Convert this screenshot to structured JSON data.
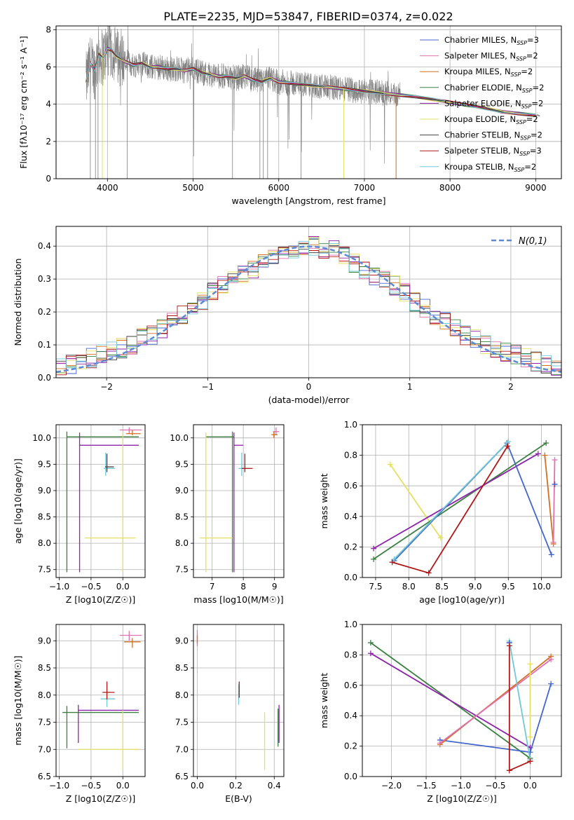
{
  "figure_title": "PLATE=2235, MJD=53847, FIBERID=0374, z=0.022",
  "colors": [
    "#4466cc",
    "#e070b0",
    "#d07020",
    "#3a8040",
    "#8e24aa",
    "#e6e060",
    "#404040",
    "#b01818",
    "#70c8d8"
  ],
  "chart_data": [
    {
      "id": "spectrum",
      "type": "line",
      "xlabel": "wavelength [Angstrom, rest frame]",
      "ylabel": "Flux [fλ10⁻¹⁷ erg cm⁻² s⁻¹ A⁻¹]",
      "xlim": [
        3400,
        9300
      ],
      "ylim": [
        0,
        8.2
      ],
      "xticks": [
        4000,
        5000,
        6000,
        7000,
        8000,
        9000
      ],
      "yticks": [
        0,
        2,
        4,
        6,
        8
      ],
      "data_color": "#808080",
      "continuum": {
        "x": [
          3750,
          3800,
          3850,
          3900,
          3950,
          4000,
          4050,
          4100,
          4200,
          4300,
          4400,
          4500,
          4600,
          4700,
          4800,
          4900,
          5000,
          5100,
          5200,
          5300,
          5400,
          5500,
          5600,
          5700,
          5800,
          5900,
          6000,
          6200,
          6400,
          6600,
          6800,
          7000,
          7200,
          7400,
          7600,
          7800,
          8000,
          8200,
          8400,
          8600,
          8800,
          9000
        ],
        "y": [
          5.2,
          6.2,
          5.8,
          6.7,
          6.5,
          7.0,
          6.9,
          6.6,
          6.3,
          6.1,
          6.2,
          6.0,
          6.0,
          5.9,
          5.9,
          5.8,
          5.9,
          5.7,
          5.6,
          5.5,
          5.5,
          5.4,
          5.5,
          5.3,
          5.2,
          5.4,
          5.2,
          5.1,
          5.0,
          4.9,
          4.8,
          4.7,
          4.6,
          4.5,
          4.4,
          4.25,
          4.1,
          3.95,
          3.8,
          3.6,
          3.5,
          3.4
        ]
      },
      "legend": [
        {
          "label": "Chabrier MILES, N_SSP=3",
          "color": "#4466cc"
        },
        {
          "label": "Salpeter MILES, N_SSP=2",
          "color": "#e070b0"
        },
        {
          "label": "Kroupa MILES, N_SSP=2",
          "color": "#d07020"
        },
        {
          "label": "Chabrier ELODIE, N_SSP=2",
          "color": "#3a8040"
        },
        {
          "label": "Salpeter ELODIE, N_SSP=2",
          "color": "#8e24aa"
        },
        {
          "label": "Kroupa ELODIE, N_SSP=2",
          "color": "#e6e060"
        },
        {
          "label": "Chabrier STELIB, N_SSP=2",
          "color": "#404040"
        },
        {
          "label": "Salpeter STELIB, N_SSP=3",
          "color": "#b01818"
        },
        {
          "label": "Kroupa STELIB, N_SSP=2",
          "color": "#70c8d8"
        }
      ]
    },
    {
      "id": "residuals",
      "type": "line",
      "xlabel": "(data-model)/error",
      "ylabel": "Normed distribution",
      "xlim": [
        -2.5,
        2.5
      ],
      "ylim": [
        0,
        0.46
      ],
      "xticks": [
        -2,
        -1,
        0,
        1,
        2
      ],
      "yticks": [
        0.0,
        0.1,
        0.2,
        0.3,
        0.4
      ],
      "gaussian_label": "N(0,1)",
      "gaussian_color": "#5b8ad6",
      "bin_edges": [
        -2.5,
        -2.4,
        -2.3,
        -2.2,
        -2.1,
        -2.0,
        -1.9,
        -1.8,
        -1.7,
        -1.6,
        -1.5,
        -1.4,
        -1.3,
        -1.2,
        -1.1,
        -1.0,
        -0.9,
        -0.8,
        -0.7,
        -0.6,
        -0.5,
        -0.4,
        -0.3,
        -0.2,
        -0.1,
        0.0,
        0.1,
        0.2,
        0.3,
        0.4,
        0.5,
        0.6,
        0.7,
        0.8,
        0.9,
        1.0,
        1.1,
        1.2,
        1.3,
        1.4,
        1.5,
        1.6,
        1.7,
        1.8,
        1.9,
        2.0,
        2.1,
        2.2,
        2.3,
        2.4,
        2.5
      ],
      "hist_base": [
        0.03,
        0.04,
        0.05,
        0.06,
        0.07,
        0.08,
        0.09,
        0.1,
        0.12,
        0.13,
        0.15,
        0.17,
        0.19,
        0.21,
        0.23,
        0.26,
        0.28,
        0.3,
        0.31,
        0.33,
        0.35,
        0.37,
        0.39,
        0.39,
        0.4,
        0.4,
        0.39,
        0.39,
        0.37,
        0.35,
        0.33,
        0.31,
        0.3,
        0.28,
        0.26,
        0.23,
        0.21,
        0.19,
        0.17,
        0.15,
        0.13,
        0.12,
        0.1,
        0.09,
        0.08,
        0.07,
        0.06,
        0.05,
        0.04,
        0.035
      ]
    },
    {
      "id": "age_vs_Z",
      "type": "scatter",
      "xlabel": "Z [log10(Z/Z☉)]",
      "ylabel": "age  [log10(age/yr)]",
      "xlim": [
        -1.05,
        0.35
      ],
      "ylim": [
        7.35,
        10.25
      ],
      "xticks": [
        -1.0,
        -0.5,
        0.0
      ],
      "yticks": [
        7.5,
        8.0,
        8.5,
        9.0,
        9.5,
        10.0
      ],
      "crosses": [
        {
          "cx": -0.88,
          "cy": 10.02,
          "hx": [
            -0.88,
            0.25
          ],
          "hy": [
            7.45,
            10.12
          ],
          "color": "#3a8040"
        },
        {
          "cx": -0.68,
          "cy": 9.86,
          "hx": [
            -0.68,
            0.25
          ],
          "hy": [
            7.45,
            10.1
          ],
          "color": "#8e24aa"
        },
        {
          "cx": 0.0,
          "cy": 8.1,
          "hx": [
            -0.6,
            0.2
          ],
          "hy": [
            7.45,
            10.1
          ],
          "color": "#e6e060"
        },
        {
          "cx": -0.27,
          "cy": 9.42,
          "hx": [
            -0.3,
            -0.12
          ],
          "hy": [
            9.28,
            9.72
          ],
          "color": "#70c8d8"
        },
        {
          "cx": -0.25,
          "cy": 9.45,
          "hx": [
            -0.28,
            -0.14
          ],
          "hy": [
            9.35,
            9.7
          ],
          "color": "#404040"
        },
        {
          "cx": 0.1,
          "cy": 10.15,
          "hx": [
            -0.05,
            0.3
          ],
          "hy": [
            10.08,
            10.2
          ],
          "color": "#e070b0"
        },
        {
          "cx": 0.15,
          "cy": 10.08,
          "hx": [
            0.05,
            0.28
          ],
          "hy": [
            10.05,
            10.15
          ],
          "color": "#d07020"
        }
      ]
    },
    {
      "id": "age_vs_mass",
      "type": "scatter",
      "xlabel": "mass [log10(M/M☉)]",
      "ylabel": "",
      "xlim": [
        6.4,
        9.3
      ],
      "ylim": [
        7.35,
        10.25
      ],
      "xticks": [
        7,
        8,
        9
      ],
      "yticks": [
        7.5,
        8.0,
        8.5,
        9.0,
        9.5,
        10.0
      ],
      "crosses": [
        {
          "cx": 7.65,
          "cy": 10.02,
          "hx": [
            6.8,
            7.7
          ],
          "hy": [
            7.45,
            10.12
          ],
          "color": "#3a8040"
        },
        {
          "cx": 7.7,
          "cy": 9.86,
          "hx": [
            7.7,
            8.0
          ],
          "hy": [
            7.45,
            10.1
          ],
          "color": "#8e24aa"
        },
        {
          "cx": 6.8,
          "cy": 8.1,
          "hx": [
            6.6,
            7.65
          ],
          "hy": [
            7.45,
            10.1
          ],
          "color": "#e6e060"
        },
        {
          "cx": 7.95,
          "cy": 9.42,
          "hx": [
            7.85,
            8.2
          ],
          "hy": [
            9.28,
            9.72
          ],
          "color": "#70c8d8"
        },
        {
          "cx": 8.05,
          "cy": 9.42,
          "hx": [
            7.95,
            8.3
          ],
          "hy": [
            9.35,
            9.7
          ],
          "color": "#b01818"
        },
        {
          "cx": 9.05,
          "cy": 10.12,
          "hx": [
            8.95,
            9.15
          ],
          "hy": [
            10.05,
            10.2
          ],
          "color": "#e070b0"
        },
        {
          "cx": 8.98,
          "cy": 10.06,
          "hx": [
            8.9,
            9.1
          ],
          "hy": [
            10.0,
            10.12
          ],
          "color": "#d07020"
        }
      ]
    },
    {
      "id": "mass_weight_vs_age",
      "type": "line",
      "xlabel": "age  [log10(age/yr)]",
      "ylabel": "mass weight",
      "xlim": [
        7.3,
        10.3
      ],
      "ylim": [
        0.0,
        1.0
      ],
      "xticks": [
        7.5,
        8.0,
        8.5,
        9.0,
        9.5,
        10.0
      ],
      "yticks": [
        0.0,
        0.2,
        0.4,
        0.6,
        0.8,
        1.0
      ],
      "series": [
        {
          "color": "#e6e060",
          "x": [
            7.72,
            8.48
          ],
          "y": [
            0.74,
            0.26
          ]
        },
        {
          "color": "#3a8040",
          "x": [
            7.47,
            10.07
          ],
          "y": [
            0.12,
            0.88
          ]
        },
        {
          "color": "#8e24aa",
          "x": [
            7.47,
            9.95
          ],
          "y": [
            0.19,
            0.81
          ]
        },
        {
          "color": "#4466cc",
          "x": [
            7.78,
            9.48,
            10.15
          ],
          "y": [
            0.11,
            0.88,
            0.15
          ]
        },
        {
          "color": "#70c8d8",
          "x": [
            7.78,
            9.5
          ],
          "y": [
            0.12,
            0.89
          ]
        },
        {
          "color": "#b01818",
          "x": [
            7.75,
            8.3,
            9.49
          ],
          "y": [
            0.1,
            0.03,
            0.86
          ]
        },
        {
          "color": "#d07020",
          "x": [
            10.05,
            10.18
          ],
          "y": [
            0.8,
            0.22
          ]
        },
        {
          "color": "#e070b0",
          "x": [
            10.2,
            10.18
          ],
          "y": [
            0.77,
            0.23
          ]
        },
        {
          "color": "#4466cc",
          "x": [
            10.2,
            10.2
          ],
          "y": [
            0.61,
            0.61
          ]
        }
      ]
    },
    {
      "id": "mass_vs_Z",
      "type": "scatter",
      "xlabel": "Z [log10(Z/Z☉)]",
      "ylabel": "mass [log10(M/M☉)]",
      "xlim": [
        -1.05,
        0.35
      ],
      "ylim": [
        6.5,
        9.3
      ],
      "xticks": [
        -1.0,
        -0.5,
        0.0
      ],
      "yticks": [
        6.5,
        7.0,
        7.5,
        8.0,
        8.5,
        9.0
      ],
      "crosses": [
        {
          "cx": -0.88,
          "cy": 7.68,
          "hx": [
            -0.95,
            0.25
          ],
          "hy": [
            7.02,
            7.8
          ],
          "color": "#3a8040"
        },
        {
          "cx": -0.7,
          "cy": 7.72,
          "hx": [
            -0.7,
            0.25
          ],
          "hy": [
            7.12,
            7.82
          ],
          "color": "#8e24aa"
        },
        {
          "cx": 0.0,
          "cy": 7.0,
          "hx": [
            -0.7,
            0.25
          ],
          "hy": [
            6.62,
            7.72
          ],
          "color": "#e6e060"
        },
        {
          "cx": -0.25,
          "cy": 7.93,
          "hx": [
            -0.35,
            -0.12
          ],
          "hy": [
            7.78,
            8.2
          ],
          "color": "#70c8d8"
        },
        {
          "cx": -0.25,
          "cy": 8.05,
          "hx": [
            -0.32,
            -0.13
          ],
          "hy": [
            7.92,
            8.25
          ],
          "color": "#b01818"
        },
        {
          "cx": 0.1,
          "cy": 9.1,
          "hx": [
            -0.05,
            0.3
          ],
          "hy": [
            9.0,
            9.18
          ],
          "color": "#e070b0"
        },
        {
          "cx": 0.15,
          "cy": 8.98,
          "hx": [
            0.02,
            0.28
          ],
          "hy": [
            8.87,
            9.05
          ],
          "color": "#d07020"
        }
      ]
    },
    {
      "id": "mass_vs_EBV",
      "type": "scatter",
      "xlabel": "E(B-V)",
      "ylabel": "",
      "xlim": [
        -0.02,
        0.45
      ],
      "ylim": [
        6.5,
        9.3
      ],
      "xticks": [
        0.0,
        0.2,
        0.4
      ],
      "yticks": [
        6.5,
        7.0,
        7.5,
        8.0,
        8.5,
        9.0
      ],
      "vlines": [
        {
          "x": 0.0,
          "y": [
            8.9,
            9.2
          ],
          "color": "#e070b0"
        },
        {
          "x": 0.0,
          "y": [
            8.95,
            9.1
          ],
          "color": "#d07020"
        },
        {
          "x": 0.215,
          "y": [
            7.82,
            8.2
          ],
          "color": "#70c8d8"
        },
        {
          "x": 0.218,
          "y": [
            7.95,
            8.25
          ],
          "color": "#b01818"
        },
        {
          "x": 0.35,
          "y": [
            6.62,
            7.68
          ],
          "color": "#e6e060"
        },
        {
          "x": 0.42,
          "y": [
            7.05,
            7.75
          ],
          "color": "#3a8040"
        },
        {
          "x": 0.425,
          "y": [
            7.12,
            7.82
          ],
          "color": "#8e24aa"
        }
      ]
    },
    {
      "id": "mass_weight_vs_Z",
      "type": "line",
      "xlabel": "Z [log10(Z/Z☉)]",
      "ylabel": "mass weight",
      "xlim": [
        -2.42,
        0.45
      ],
      "ylim": [
        0.0,
        1.0
      ],
      "xticks": [
        -2.0,
        -1.5,
        -1.0,
        -0.5,
        0.0
      ],
      "yticks": [
        0.0,
        0.2,
        0.4,
        0.6,
        0.8,
        1.0
      ],
      "series": [
        {
          "color": "#3a8040",
          "x": [
            -2.3,
            0.0
          ],
          "y": [
            0.88,
            0.12
          ]
        },
        {
          "color": "#8e24aa",
          "x": [
            -2.3,
            0.0
          ],
          "y": [
            0.81,
            0.19
          ]
        },
        {
          "color": "#4466cc",
          "x": [
            -1.3,
            0.0,
            0.3
          ],
          "y": [
            0.24,
            0.16,
            0.61
          ]
        },
        {
          "color": "#d07020",
          "x": [
            -1.3,
            0.3
          ],
          "y": [
            0.21,
            0.79
          ]
        },
        {
          "color": "#e070b0",
          "x": [
            -1.3,
            0.3
          ],
          "y": [
            0.22,
            0.77
          ]
        },
        {
          "color": "#70c8d8",
          "x": [
            -0.3,
            0.0
          ],
          "y": [
            0.89,
            0.11
          ]
        },
        {
          "color": "#4466cc",
          "x": [
            -0.3,
            -0.3
          ],
          "y": [
            0.88,
            0.88
          ]
        },
        {
          "color": "#b01818",
          "x": [
            -0.3,
            -0.3,
            0.0
          ],
          "y": [
            0.86,
            0.04,
            0.1
          ]
        },
        {
          "color": "#e6e060",
          "x": [
            0.0,
            0.0
          ],
          "y": [
            0.74,
            0.26
          ]
        }
      ]
    }
  ]
}
